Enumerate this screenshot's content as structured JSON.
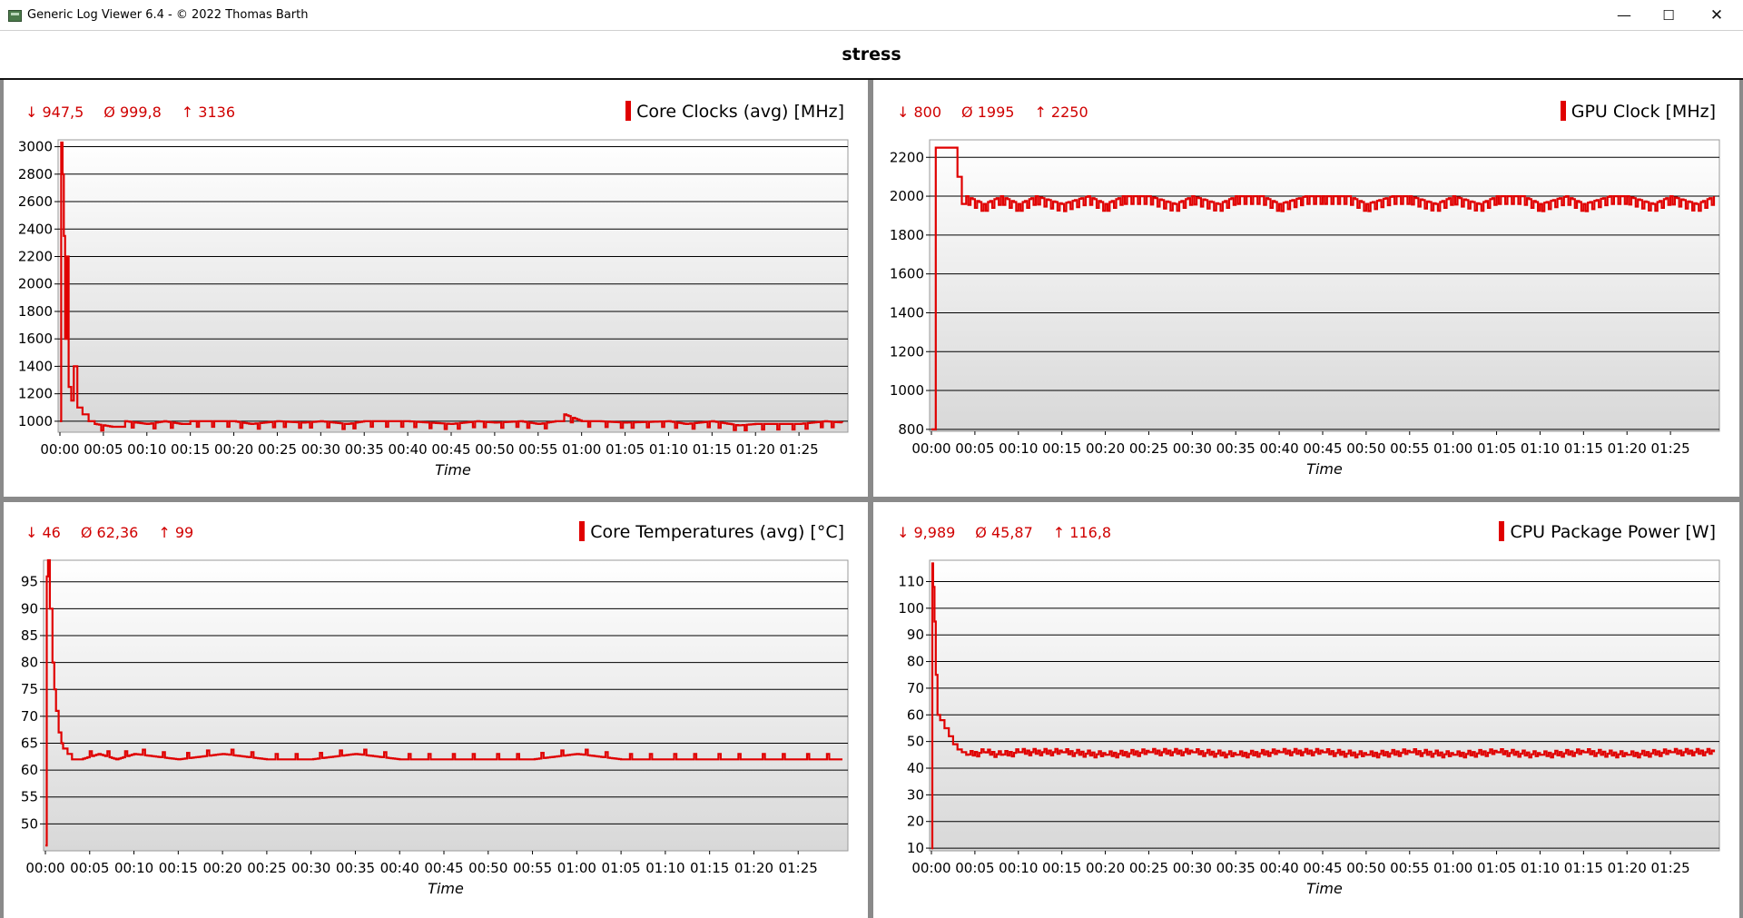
{
  "window": {
    "title": "Generic Log Viewer 6.4 - © 2022 Thomas Barth",
    "minimize": "—",
    "maximize": "☐",
    "close": "✕"
  },
  "page_title": "stress",
  "colors": {
    "series": "#e00000",
    "stats": "#d00000",
    "grid": "#000000",
    "plot_bg_top": "#ffffff",
    "plot_bg_bottom": "#d8d8d8"
  },
  "charts": [
    {
      "id": "core-clocks",
      "title": "Core Clocks (avg) [MHz]",
      "stats": {
        "min": "↓ 947,5",
        "avg": "Ø 999,8",
        "max": "↑ 3136"
      },
      "xlabel": "Time",
      "xticks": [
        "00:00",
        "00:05",
        "00:10",
        "00:15",
        "00:20",
        "00:25",
        "00:30",
        "00:35",
        "00:40",
        "00:45",
        "00:50",
        "00:55",
        "01:00",
        "01:05",
        "01:10",
        "01:15",
        "01:20",
        "01:25"
      ],
      "yticks": [
        "1000",
        "1200",
        "1400",
        "1600",
        "1800",
        "2000",
        "2200",
        "2400",
        "2600",
        "2800",
        "3000"
      ]
    },
    {
      "id": "gpu-clock",
      "title": "GPU Clock [MHz]",
      "stats": {
        "min": "↓ 800",
        "avg": "Ø 1995",
        "max": "↑ 2250"
      },
      "xlabel": "Time",
      "xticks": [
        "00:00",
        "00:05",
        "00:10",
        "00:15",
        "00:20",
        "00:25",
        "00:30",
        "00:35",
        "00:40",
        "00:45",
        "00:50",
        "00:55",
        "01:00",
        "01:05",
        "01:10",
        "01:15",
        "01:20",
        "01:25"
      ],
      "yticks": [
        "800",
        "1000",
        "1200",
        "1400",
        "1600",
        "1800",
        "2000",
        "2200"
      ]
    },
    {
      "id": "core-temps",
      "title": "Core Temperatures (avg) [°C]",
      "stats": {
        "min": "↓ 46",
        "avg": "Ø 62,36",
        "max": "↑ 99"
      },
      "xlabel": "Time",
      "xticks": [
        "00:00",
        "00:05",
        "00:10",
        "00:15",
        "00:20",
        "00:25",
        "00:30",
        "00:35",
        "00:40",
        "00:45",
        "00:50",
        "00:55",
        "01:00",
        "01:05",
        "01:10",
        "01:15",
        "01:20",
        "01:25"
      ],
      "yticks": [
        "50",
        "55",
        "60",
        "65",
        "70",
        "75",
        "80",
        "85",
        "90",
        "95"
      ]
    },
    {
      "id": "cpu-power",
      "title": "CPU Package Power [W]",
      "stats": {
        "min": "↓ 9,989",
        "avg": "Ø 45,87",
        "max": "↑ 116,8"
      },
      "xlabel": "Time",
      "xticks": [
        "00:00",
        "00:05",
        "00:10",
        "00:15",
        "00:20",
        "00:25",
        "00:30",
        "00:35",
        "00:40",
        "00:45",
        "00:50",
        "00:55",
        "01:00",
        "01:05",
        "01:10",
        "01:15",
        "01:20",
        "01:25"
      ],
      "yticks": [
        "10",
        "20",
        "30",
        "40",
        "50",
        "60",
        "70",
        "80",
        "90",
        "100",
        "110"
      ]
    }
  ],
  "chart_data": [
    {
      "type": "line",
      "title": "Core Clocks (avg) [MHz]",
      "xlabel": "Time",
      "ylabel": "",
      "x_unit": "minutes",
      "xlim": [
        0,
        90
      ],
      "ylim": [
        920,
        3050
      ],
      "series": [
        {
          "x": [
            0,
            0.15,
            0.3,
            0.45,
            0.6,
            0.8,
            1.0,
            1.3,
            1.6,
            2.0,
            2.6,
            3.3,
            4.0,
            6.0,
            7.5,
            10,
            12,
            14,
            15,
            20,
            22,
            25,
            28,
            30,
            33,
            35,
            40,
            45,
            48,
            50,
            53,
            55,
            57,
            58,
            60,
            62,
            65,
            70,
            72,
            75,
            78,
            80,
            85,
            88,
            90
          ],
          "y": [
            1000,
            3030,
            2800,
            2350,
            1600,
            2200,
            1250,
            1150,
            1400,
            1100,
            1050,
            1000,
            980,
            960,
            1000,
            980,
            1000,
            980,
            1000,
            1000,
            980,
            1000,
            990,
            1000,
            980,
            1000,
            1000,
            980,
            1000,
            990,
            1000,
            980,
            1000,
            1050,
            1000,
            1000,
            990,
            1000,
            980,
            1000,
            970,
            980,
            980,
            1000,
            990
          ]
        }
      ]
    },
    {
      "type": "line",
      "title": "GPU Clock [MHz]",
      "xlabel": "Time",
      "ylabel": "",
      "x_unit": "minutes",
      "xlim": [
        0,
        90
      ],
      "ylim": [
        790,
        2290
      ],
      "series": [
        {
          "x": [
            0,
            0.3,
            0.5,
            0.7,
            1.0,
            2.5,
            3.0,
            3.5,
            4.0,
            6,
            8,
            10,
            12,
            15,
            18,
            20,
            22,
            25,
            28,
            30,
            33,
            35,
            38,
            40,
            43,
            45,
            48,
            50,
            53,
            55,
            58,
            60,
            63,
            65,
            68,
            70,
            73,
            75,
            78,
            80,
            83,
            85,
            88,
            90
          ],
          "y": [
            800,
            800,
            2250,
            2250,
            2250,
            2250,
            2100,
            1960,
            2000,
            1960,
            2000,
            1960,
            2000,
            1960,
            2000,
            1960,
            2000,
            2000,
            1960,
            2000,
            1960,
            2000,
            2000,
            1960,
            2000,
            2000,
            2000,
            1960,
            2000,
            2000,
            1960,
            2000,
            1960,
            2000,
            2000,
            1960,
            2000,
            1960,
            2000,
            2000,
            1960,
            2000,
            1960,
            2000
          ]
        }
      ]
    },
    {
      "type": "line",
      "title": "Core Temperatures (avg) [°C]",
      "xlabel": "Time",
      "ylabel": "",
      "x_unit": "minutes",
      "xlim": [
        0,
        90
      ],
      "ylim": [
        45,
        99
      ],
      "series": [
        {
          "x": [
            0,
            0.15,
            0.3,
            0.5,
            0.8,
            1.0,
            1.2,
            1.5,
            1.8,
            2.0,
            2.5,
            3.0,
            4.0,
            6,
            8,
            10,
            15,
            20,
            25,
            30,
            35,
            40,
            45,
            50,
            55,
            60,
            65,
            70,
            75,
            80,
            85,
            90
          ],
          "y": [
            46,
            96,
            99,
            90,
            80,
            75,
            71,
            67,
            65,
            64,
            63,
            62,
            62,
            63,
            62,
            63,
            62,
            63,
            62,
            62,
            63,
            62,
            62,
            62,
            62,
            63,
            62,
            62,
            62,
            62,
            62,
            62
          ]
        }
      ]
    },
    {
      "type": "line",
      "title": "CPU Package Power [W]",
      "xlabel": "Time",
      "ylabel": "",
      "x_unit": "minutes",
      "xlim": [
        0,
        90
      ],
      "ylim": [
        9,
        118
      ],
      "series": [
        {
          "x": [
            0,
            0.1,
            0.2,
            0.35,
            0.5,
            0.7,
            1.0,
            1.5,
            2.0,
            2.5,
            3.0,
            3.5,
            4,
            6,
            8,
            10,
            15,
            20,
            25,
            30,
            35,
            40,
            45,
            50,
            55,
            60,
            65,
            70,
            75,
            80,
            85,
            90
          ],
          "y": [
            10,
            116.8,
            108,
            95,
            75,
            60,
            58,
            55,
            52,
            49,
            47,
            46,
            45,
            46,
            45,
            46,
            46,
            45,
            46,
            46,
            45,
            46,
            46,
            45,
            46,
            45,
            46,
            45,
            46,
            45,
            46,
            46
          ]
        }
      ]
    }
  ]
}
